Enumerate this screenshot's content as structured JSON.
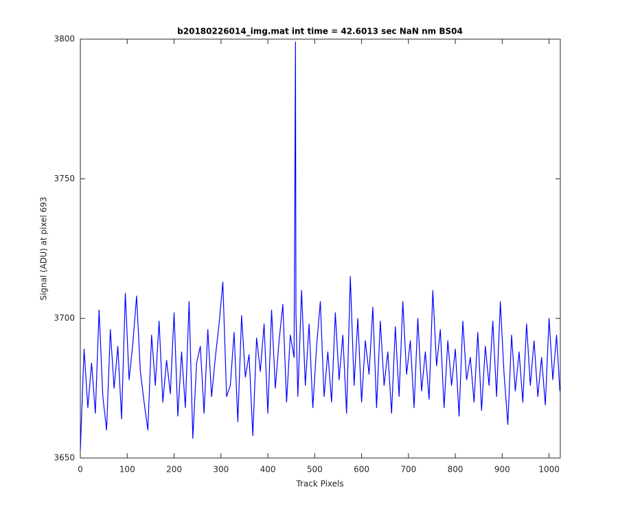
{
  "chart_data": {
    "type": "line",
    "title": "b20180226014_img.mat int time = 42.6013 sec  NaN nm BS04",
    "xlabel": "Track Pixels",
    "ylabel": "Signal (ADU) at pixel 693",
    "xlim": [
      0,
      1024
    ],
    "ylim": [
      3650,
      3800
    ],
    "xticks": [
      0,
      100,
      200,
      300,
      400,
      500,
      600,
      700,
      800,
      900,
      1000
    ],
    "yticks": [
      3650,
      3700,
      3750,
      3800
    ],
    "grid": false,
    "series": [
      {
        "color": "#0000ff",
        "x": [
          0,
          8,
          16,
          24,
          32,
          40,
          48,
          56,
          64,
          72,
          80,
          88,
          96,
          104,
          112,
          120,
          128,
          136,
          144,
          152,
          160,
          168,
          176,
          184,
          192,
          200,
          208,
          216,
          224,
          232,
          240,
          248,
          256,
          264,
          272,
          280,
          288,
          296,
          304,
          312,
          320,
          328,
          336,
          344,
          352,
          360,
          368,
          376,
          384,
          392,
          400,
          408,
          416,
          424,
          432,
          440,
          448,
          456,
          459,
          460,
          464,
          472,
          480,
          488,
          496,
          504,
          512,
          520,
          528,
          536,
          544,
          552,
          560,
          568,
          576,
          584,
          592,
          600,
          608,
          616,
          624,
          632,
          640,
          648,
          656,
          664,
          672,
          680,
          688,
          696,
          704,
          712,
          720,
          728,
          736,
          744,
          752,
          760,
          768,
          776,
          784,
          792,
          800,
          808,
          816,
          824,
          832,
          840,
          848,
          856,
          864,
          872,
          880,
          888,
          896,
          904,
          912,
          920,
          928,
          936,
          944,
          952,
          960,
          968,
          976,
          984,
          992,
          1000,
          1008,
          1016,
          1023
        ],
        "values": [
          3653,
          3689,
          3668,
          3684,
          3666,
          3703,
          3672,
          3660,
          3696,
          3675,
          3690,
          3664,
          3709,
          3678,
          3691,
          3708,
          3681,
          3670,
          3660,
          3694,
          3676,
          3699,
          3670,
          3685,
          3673,
          3702,
          3665,
          3688,
          3668,
          3706,
          3657,
          3684,
          3690,
          3666,
          3696,
          3672,
          3686,
          3698,
          3713,
          3672,
          3676,
          3695,
          3663,
          3701,
          3679,
          3687,
          3658,
          3693,
          3681,
          3698,
          3666,
          3703,
          3675,
          3692,
          3705,
          3670,
          3694,
          3686,
          3799,
          3702,
          3672,
          3710,
          3676,
          3698,
          3668,
          3690,
          3706,
          3672,
          3688,
          3670,
          3702,
          3678,
          3694,
          3666,
          3715,
          3676,
          3700,
          3670,
          3692,
          3680,
          3704,
          3668,
          3699,
          3676,
          3688,
          3666,
          3697,
          3672,
          3706,
          3680,
          3692,
          3668,
          3700,
          3674,
          3688,
          3671,
          3710,
          3683,
          3696,
          3668,
          3692,
          3676,
          3689,
          3665,
          3699,
          3678,
          3686,
          3670,
          3695,
          3667,
          3690,
          3676,
          3699,
          3672,
          3706,
          3680,
          3662,
          3694,
          3674,
          3688,
          3670,
          3698,
          3676,
          3692,
          3672,
          3686,
          3669,
          3700,
          3678,
          3694,
          3674
        ]
      }
    ]
  }
}
